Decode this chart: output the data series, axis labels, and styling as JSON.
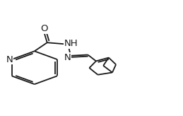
{
  "bg": "#ffffff",
  "lc": "#1a1a1a",
  "lw": 1.3,
  "dbo": 0.013,
  "fs": 9.5,
  "figsize": [
    2.59,
    1.64
  ],
  "dpi": 100,
  "xlim": [
    0.0,
    1.0
  ],
  "ylim": [
    0.0,
    1.0
  ]
}
